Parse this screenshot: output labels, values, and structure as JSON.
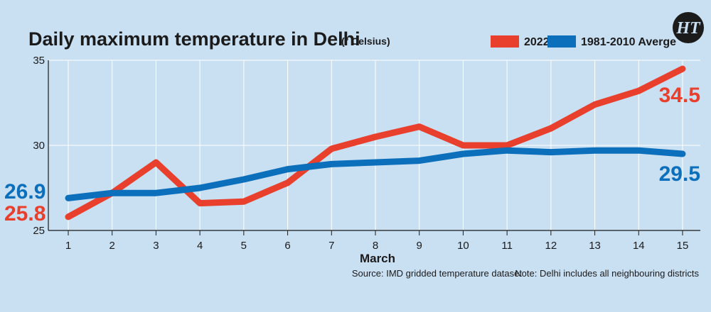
{
  "chart_data": {
    "type": "line",
    "title": "Daily maximum temperature in Delhi",
    "unit": "(° Celsius)",
    "xlabel": "March",
    "ylabel": "",
    "x": [
      1,
      2,
      3,
      4,
      5,
      6,
      7,
      8,
      9,
      10,
      11,
      12,
      13,
      14,
      15
    ],
    "xlim": [
      1,
      15
    ],
    "ylim": [
      25,
      35
    ],
    "yticks": [
      25,
      30,
      35
    ],
    "grid": true,
    "legend_position": "top-right",
    "series": [
      {
        "name": "2022",
        "color": "#e8402d",
        "values": [
          25.8,
          27.2,
          29.0,
          26.6,
          26.7,
          27.8,
          29.8,
          30.5,
          31.1,
          30.0,
          30.0,
          31.0,
          32.4,
          33.2,
          34.5
        ],
        "end_label": "34.5",
        "start_label": "25.8"
      },
      {
        "name": "1981-2010 Averge",
        "color": "#0b6fbb",
        "values": [
          26.9,
          27.2,
          27.2,
          27.5,
          28.0,
          28.6,
          28.9,
          29.0,
          29.1,
          29.5,
          29.7,
          29.6,
          29.7,
          29.7,
          29.5
        ],
        "end_label": "29.5",
        "start_label": "26.9"
      }
    ],
    "source": "Source: IMD gridded temperature dataset",
    "note": "Note: Delhi includes all neighbouring districts"
  },
  "logo": {
    "text": "HT",
    "color": "#1b1b1b"
  }
}
